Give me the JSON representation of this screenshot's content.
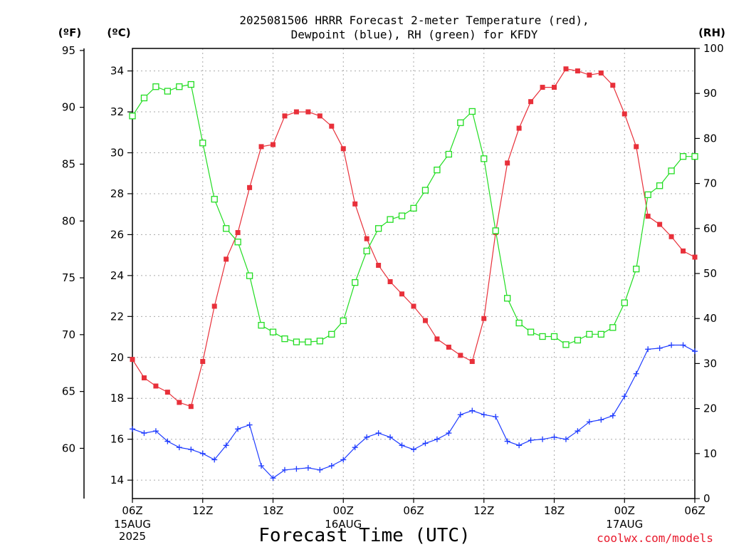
{
  "chart_data": {
    "type": "line",
    "title_lines": [
      "2025081506 HRRR Forecast 2-meter Temperature (red),",
      "Dewpoint (blue), RH (green) for KFDY"
    ],
    "xlabel": "Forecast Time (UTC)",
    "credit": "coolwx.com/models",
    "units": {
      "fahrenheit": "(ºF)",
      "celsius": "(ºC)",
      "rh": "(RH)"
    },
    "x_hours_from_start": {
      "min": 0,
      "max": 48
    },
    "x_ticks": [
      {
        "hour": 0,
        "label": "06Z",
        "sub": [
          "15AUG",
          "2025"
        ]
      },
      {
        "hour": 6,
        "label": "12Z",
        "sub": []
      },
      {
        "hour": 12,
        "label": "18Z",
        "sub": []
      },
      {
        "hour": 18,
        "label": "00Z",
        "sub": [
          "16AUG"
        ]
      },
      {
        "hour": 24,
        "label": "06Z",
        "sub": []
      },
      {
        "hour": 30,
        "label": "12Z",
        "sub": []
      },
      {
        "hour": 36,
        "label": "18Z",
        "sub": []
      },
      {
        "hour": 42,
        "label": "00Z",
        "sub": [
          "17AUG"
        ]
      },
      {
        "hour": 48,
        "label": "06Z",
        "sub": []
      }
    ],
    "celsius_axis": {
      "min": 13.1,
      "max": 35.1,
      "ticks": [
        14,
        16,
        18,
        20,
        22,
        24,
        26,
        28,
        30,
        32,
        34
      ]
    },
    "fahrenheit_axis": {
      "ticks": [
        60,
        65,
        70,
        75,
        80,
        85,
        90,
        95
      ]
    },
    "rh_axis": {
      "min": 0,
      "max": 100,
      "ticks": [
        0,
        10,
        20,
        30,
        40,
        50,
        60,
        70,
        80,
        90,
        100
      ]
    },
    "grid": true,
    "series": [
      {
        "name": "Temperature",
        "unit": "C",
        "color": "#e8303a",
        "marker": "filled-square",
        "values": [
          19.9,
          19.0,
          18.6,
          18.3,
          17.8,
          17.6,
          19.8,
          22.5,
          24.8,
          26.1,
          28.3,
          30.3,
          30.4,
          31.8,
          32.0,
          32.0,
          31.8,
          31.3,
          30.2,
          27.5,
          25.8,
          24.5,
          23.7,
          23.1,
          22.5,
          21.8,
          20.9,
          20.5,
          20.1,
          19.8,
          21.9,
          26.1,
          29.5,
          31.2,
          32.5,
          33.2,
          33.2,
          34.1,
          34.0,
          33.8,
          33.9,
          33.3,
          31.9,
          30.3,
          26.9,
          26.5,
          25.9,
          25.2,
          24.9
        ]
      },
      {
        "name": "Dewpoint",
        "unit": "C",
        "color": "#1f3cff",
        "marker": "plus",
        "values": [
          16.5,
          16.3,
          16.4,
          15.9,
          15.6,
          15.5,
          15.3,
          15.0,
          15.7,
          16.5,
          16.7,
          14.7,
          14.1,
          14.5,
          14.55,
          14.6,
          14.5,
          14.7,
          15.0,
          15.6,
          16.1,
          16.3,
          16.1,
          15.7,
          15.5,
          15.8,
          16.0,
          16.3,
          17.2,
          17.4,
          17.2,
          17.1,
          15.9,
          15.7,
          15.95,
          16.0,
          16.1,
          16.0,
          16.4,
          16.85,
          16.95,
          17.15,
          18.1,
          19.2,
          20.4,
          20.45,
          20.6,
          20.6,
          20.3
        ]
      },
      {
        "name": "RH",
        "unit": "%",
        "color": "#22dd22",
        "marker": "open-square",
        "values": [
          85.0,
          89.0,
          91.5,
          90.5,
          91.5,
          92.0,
          79.0,
          66.5,
          60.0,
          57.0,
          49.5,
          38.5,
          37.0,
          35.5,
          34.8,
          34.8,
          35.0,
          36.5,
          39.5,
          48.0,
          55.0,
          60.0,
          62.0,
          62.8,
          64.5,
          68.5,
          73.0,
          76.5,
          83.5,
          86.0,
          75.5,
          59.5,
          44.5,
          39.0,
          37.0,
          36.0,
          36.0,
          34.2,
          35.2,
          36.5,
          36.5,
          38.0,
          43.5,
          51.0,
          67.5,
          69.5,
          72.8,
          76.0,
          76.0
        ]
      }
    ]
  }
}
